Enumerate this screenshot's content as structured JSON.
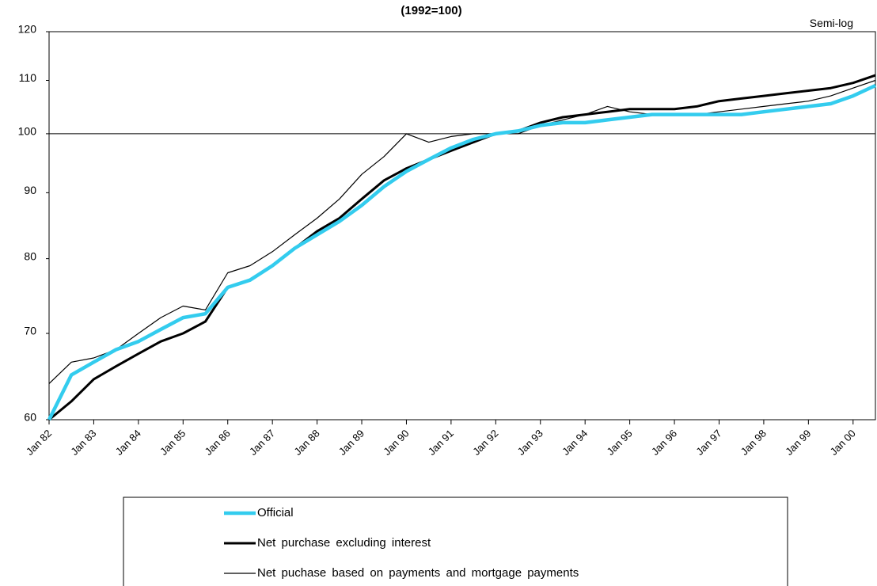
{
  "chart_data": {
    "type": "line",
    "title": "(1992=100)",
    "annotation": "Semi-log",
    "log_scale": true,
    "ylim": [
      60,
      120
    ],
    "yticks": [
      60,
      70,
      80,
      90,
      100,
      110,
      120
    ],
    "reference_line": 100,
    "x": [
      "Jan 82",
      null,
      "Jan 83",
      null,
      "Jan 84",
      null,
      "Jan 85",
      null,
      "Jan 86",
      null,
      "Jan 87",
      null,
      "Jan 88",
      null,
      "Jan 89",
      null,
      "Jan 90",
      null,
      "Jan 91",
      null,
      "Jan 92",
      null,
      "Jan 93",
      null,
      "Jan 94",
      null,
      "Jan 95",
      null,
      "Jan 96",
      null,
      "Jan 97",
      null,
      "Jan 98",
      null,
      "Jan 99",
      null,
      "Jan 00",
      null
    ],
    "series": [
      {
        "name": "Official",
        "color": "#33ccee",
        "width": 4.5,
        "values": [
          60,
          65,
          66.5,
          68,
          69,
          70.5,
          72,
          72.5,
          76,
          77,
          79,
          81.5,
          83.5,
          85.5,
          88,
          91,
          93.5,
          95.5,
          97.5,
          99,
          100,
          100.5,
          101.5,
          102,
          102,
          102.5,
          103,
          103.5,
          103.5,
          103.5,
          103.5,
          103.5,
          104,
          104.5,
          105,
          105.5,
          107,
          109
        ]
      },
      {
        "name": "Net purchase excluding interest",
        "color": "#000000",
        "width": 3,
        "values": [
          60,
          62,
          64.5,
          66,
          67.5,
          69,
          70,
          71.5,
          76,
          77,
          79,
          81.5,
          84,
          86,
          89,
          92,
          94,
          95.5,
          97,
          98.5,
          100,
          100.5,
          102,
          103,
          103.5,
          104,
          104.5,
          104.5,
          104.5,
          105,
          106,
          106.5,
          107,
          107.5,
          108,
          108.5,
          109.5,
          111
        ]
      },
      {
        "name": "Net puchase based on payments and mortgage payments",
        "color": "#000000",
        "width": 1.2,
        "values": [
          64,
          66.5,
          67,
          68,
          70,
          72,
          73.5,
          73,
          78,
          79,
          81,
          83.5,
          86,
          89,
          93,
          96,
          100,
          98.5,
          99.5,
          100,
          100,
          100,
          101.5,
          102.5,
          103.5,
          105,
          104,
          103.5,
          103.5,
          103.5,
          104,
          104.5,
          105,
          105.5,
          106,
          107,
          108.5,
          110
        ]
      }
    ]
  }
}
